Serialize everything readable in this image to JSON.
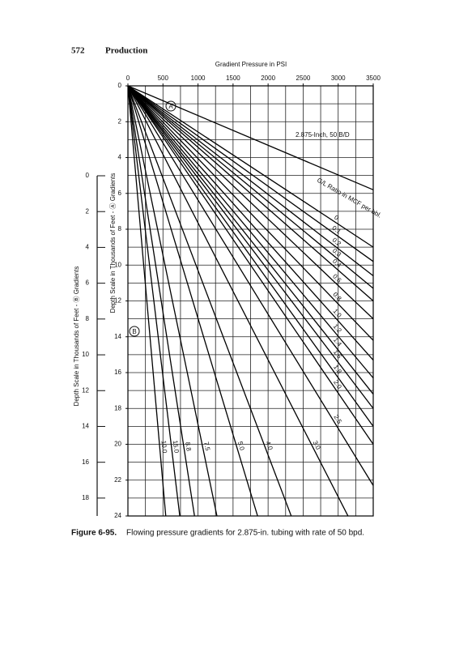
{
  "header": {
    "page_number": "572",
    "section": "Production"
  },
  "caption": {
    "label": "Figure 6-95.",
    "text": "Flowing pressure gradients for 2.875-in. tubing with rate of 50 bpd."
  },
  "chart_data": {
    "type": "line",
    "xlabel": "Gradient Pressure in PSI",
    "ylabel": "Depth Scale in Thousands of Feet - Ⓐ Gradients",
    "y2label": "Depth Scale in Thousands of Feet - Ⓑ Gradients",
    "xlim": [
      0,
      3500
    ],
    "xticks": [
      0,
      500,
      1000,
      1500,
      2000,
      2500,
      3000,
      3500
    ],
    "xgrid": [
      0,
      250,
      500,
      750,
      1000,
      1250,
      1500,
      1750,
      2000,
      2250,
      2500,
      2750,
      3000,
      3250,
      3500
    ],
    "ylim": [
      0,
      24
    ],
    "yticks": [
      0,
      2,
      4,
      6,
      8,
      10,
      12,
      14,
      16,
      18,
      20,
      22,
      24
    ],
    "ygrid": [
      0,
      1,
      2,
      3,
      4,
      5,
      6,
      7,
      8,
      9,
      10,
      11,
      12,
      13,
      14,
      15,
      16,
      17,
      18,
      19,
      20,
      21,
      22,
      23,
      24
    ],
    "y2lim": [
      0,
      19
    ],
    "y2ticks": [
      0,
      2,
      4,
      6,
      8,
      10,
      12,
      14,
      16,
      18
    ],
    "annotations": [
      "2.875-Inch, 50 B/D",
      "G/L Ratio in MCF per bbl.",
      "A",
      "B"
    ],
    "series": [
      {
        "x": [
          0,
          3500
        ],
        "y": [
          0,
          5.8
        ]
      },
      {
        "name": "0",
        "x": [
          0,
          3500
        ],
        "y": [
          0,
          9.0
        ]
      },
      {
        "name": "0.1",
        "x": [
          0,
          3500
        ],
        "y": [
          0,
          9.8
        ]
      },
      {
        "name": "0.2",
        "x": [
          0,
          3500
        ],
        "y": [
          0,
          10.6
        ]
      },
      {
        "name": "0.3",
        "x": [
          0,
          3500
        ],
        "y": [
          0,
          11.3
        ]
      },
      {
        "name": "0.4",
        "x": [
          0,
          3500
        ],
        "y": [
          0,
          12.0
        ]
      },
      {
        "name": "0.6",
        "x": [
          0,
          3500
        ],
        "y": [
          0,
          13.0
        ]
      },
      {
        "name": "0.8",
        "x": [
          0,
          3500
        ],
        "y": [
          0,
          14.2
        ]
      },
      {
        "name": "1.0",
        "x": [
          0,
          3500
        ],
        "y": [
          0,
          15.3
        ]
      },
      {
        "name": "1.2",
        "x": [
          0,
          3500
        ],
        "y": [
          0,
          16.3
        ]
      },
      {
        "name": "1.4",
        "x": [
          0,
          3500
        ],
        "y": [
          0,
          17.2
        ]
      },
      {
        "name": "1.6",
        "x": [
          0,
          3500
        ],
        "y": [
          0,
          18.0
        ]
      },
      {
        "name": "1.8",
        "x": [
          0,
          3500
        ],
        "y": [
          0,
          19.0
        ]
      },
      {
        "name": "2.0",
        "x": [
          0,
          3500
        ],
        "y": [
          0,
          20.0
        ]
      },
      {
        "name": "2.5",
        "x": [
          0,
          3500
        ],
        "y": [
          0,
          22.3
        ]
      },
      {
        "name": "3.0",
        "x": [
          0,
          3140
        ],
        "y": [
          0,
          24
        ]
      },
      {
        "name": "4.0",
        "x": [
          0,
          2330
        ],
        "y": [
          0,
          24
        ]
      },
      {
        "name": "5.0",
        "x": [
          0,
          1850
        ],
        "y": [
          0,
          24
        ]
      },
      {
        "name": "7.5",
        "x": [
          0,
          1270
        ],
        "y": [
          0,
          24
        ]
      },
      {
        "name": "8.8",
        "x": [
          0,
          950
        ],
        "y": [
          0,
          24
        ]
      },
      {
        "name": "15.0",
        "x": [
          0,
          740
        ],
        "y": [
          0,
          24
        ]
      },
      {
        "name": "10.0",
        "x": [
          0,
          540
        ],
        "y": [
          0,
          24
        ]
      }
    ]
  }
}
